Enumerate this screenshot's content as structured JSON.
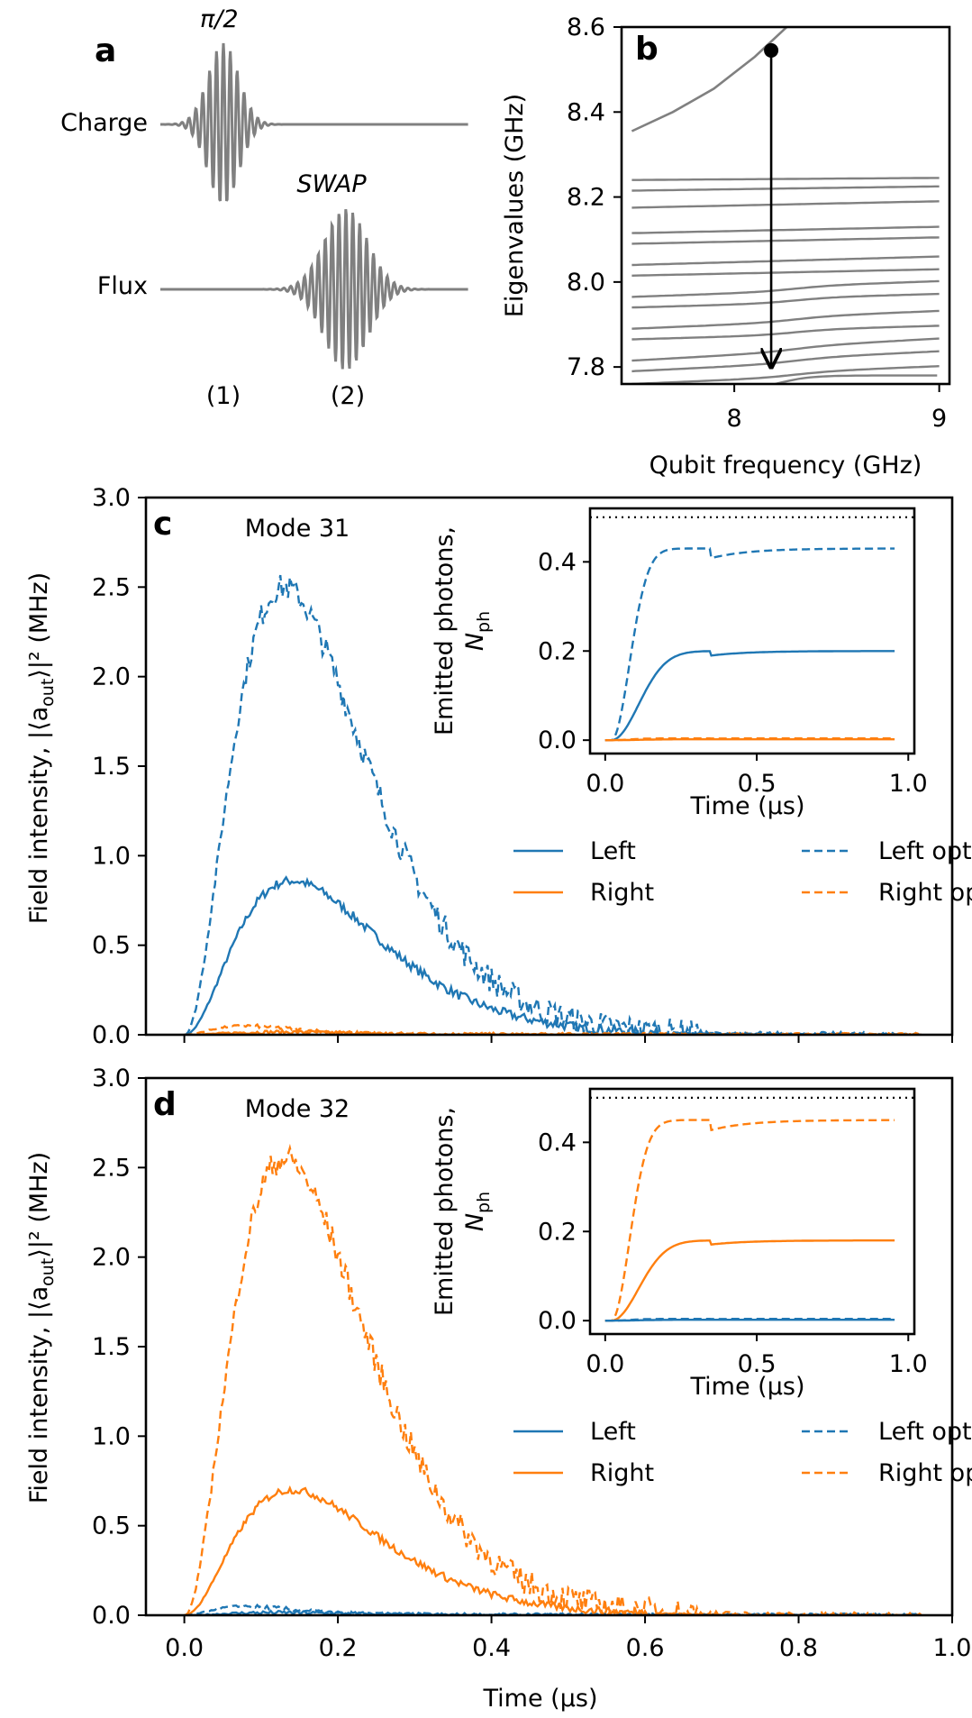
{
  "panel_a": {
    "letter": "a",
    "charge_label": "Charge",
    "flux_label": "Flux",
    "pulse1_label": "π/2",
    "pulse2_label": "SWAP",
    "step1_label": "(1)",
    "step2_label": "(2)",
    "line_color": "#808080"
  },
  "chart_data": [
    {
      "id": "b",
      "type": "line",
      "letter": "b",
      "xlabel": "Qubit frequency (GHz)",
      "ylabel": "Eigenvalues (GHz)",
      "xlim": [
        7.45,
        9.05
      ],
      "ylim": [
        7.76,
        8.6
      ],
      "xticks": [
        8,
        9
      ],
      "xtick_labels": [
        "8",
        "9"
      ],
      "yticks": [
        7.8,
        8.0,
        8.2,
        8.4,
        8.6
      ],
      "ytick_labels": [
        "7.8",
        "8.0",
        "8.2",
        "8.4",
        "8.6"
      ],
      "color": "#808080",
      "qubit_branch": {
        "x": [
          7.5,
          7.7,
          7.9,
          8.1,
          8.3
        ],
        "y": [
          8.355,
          8.4,
          8.455,
          8.53,
          8.62
        ]
      },
      "modes": [
        {
          "y_left": 8.24,
          "y_right": 8.245
        },
        {
          "y_left": 8.215,
          "y_right": 8.225
        },
        {
          "y_left": 8.175,
          "y_right": 8.19
        },
        {
          "y_left": 8.115,
          "y_right": 8.13
        },
        {
          "y_left": 8.09,
          "y_right": 8.105
        },
        {
          "y_left": 8.04,
          "y_right": 8.06
        },
        {
          "y_left": 8.015,
          "y_right": 8.03
        },
        {
          "y_left": 7.965,
          "y_right": 7.99
        },
        {
          "y_left": 7.94,
          "y_right": 7.96
        },
        {
          "y_left": 7.89,
          "y_right": 7.92
        },
        {
          "y_left": 7.865,
          "y_right": 7.885
        },
        {
          "y_left": 7.815,
          "y_right": 7.855
        },
        {
          "y_left": 7.79,
          "y_right": 7.825
        },
        {
          "y_left": 7.76,
          "y_right": 7.79
        }
      ],
      "arrow": {
        "x": 8.18,
        "y_start": 8.545,
        "y_end": 7.8
      },
      "marker": {
        "x": 8.18,
        "y": 8.545
      }
    },
    {
      "id": "c",
      "type": "line",
      "letter": "c",
      "title": "Mode 31",
      "xlabel": "",
      "ylabel_main": "Field intensity, |⟨a",
      "ylabel_sub": "out",
      "ylabel_tail": "⟩|² (MHz)",
      "xlim": [
        -0.05,
        1.0
      ],
      "ylim": [
        0.0,
        3.0
      ],
      "yticks": [
        0.0,
        0.5,
        1.0,
        1.5,
        2.0,
        2.5,
        3.0
      ],
      "ytick_labels": [
        "0.0",
        "0.5",
        "1.0",
        "1.5",
        "2.0",
        "2.5",
        "3.0"
      ],
      "xticks": [
        0.0,
        0.2,
        0.4,
        0.6,
        0.8,
        1.0
      ],
      "show_xtick_labels": false,
      "series": [
        {
          "name": "Left",
          "color": "#1f77b4",
          "style": "solid",
          "peak": 0.86,
          "t_peak": 0.14
        },
        {
          "name": "Right",
          "color": "#ff7f0e",
          "style": "solid",
          "peak": 0.015,
          "t_peak": 0.12
        },
        {
          "name": "Left opt",
          "color": "#1f77b4",
          "style": "dashed",
          "peak": 2.5,
          "t_peak": 0.13
        },
        {
          "name": "Right opt",
          "color": "#ff7f0e",
          "style": "dashed",
          "peak": 0.05,
          "t_peak": 0.08
        }
      ],
      "legend": {
        "placement": "lower-right",
        "labels": [
          "Left",
          "Right",
          "Left opt",
          "Right opt"
        ]
      },
      "inset": {
        "ylabel_main": "Emitted photons,",
        "ylabel_sym": "N",
        "ylabel_sub": "ph",
        "xlabel": "Time (μs)",
        "xlim": [
          -0.05,
          1.02
        ],
        "ylim": [
          -0.03,
          0.52
        ],
        "xticks": [
          0.0,
          0.5,
          1.0
        ],
        "xtick_labels": [
          "0.0",
          "0.5",
          "1.0"
        ],
        "yticks": [
          0.0,
          0.2,
          0.4
        ],
        "ytick_labels": [
          "0.0",
          "0.2",
          "0.4"
        ],
        "reference_level": 0.5,
        "series": [
          {
            "name": "Left",
            "final": 0.2,
            "color": "#1f77b4",
            "style": "solid"
          },
          {
            "name": "Left opt",
            "final": 0.43,
            "color": "#1f77b4",
            "style": "dashed"
          },
          {
            "name": "Right",
            "final": 0.002,
            "color": "#ff7f0e",
            "style": "solid"
          },
          {
            "name": "Right opt",
            "final": 0.004,
            "color": "#ff7f0e",
            "style": "dashed"
          }
        ]
      }
    },
    {
      "id": "d",
      "type": "line",
      "letter": "d",
      "title": "Mode 32",
      "xlabel": "Time (μs)",
      "ylabel_main": "Field intensity, |⟨a",
      "ylabel_sub": "out",
      "ylabel_tail": "⟩|² (MHz)",
      "xlim": [
        -0.05,
        1.0
      ],
      "ylim": [
        0.0,
        3.0
      ],
      "yticks": [
        0.0,
        0.5,
        1.0,
        1.5,
        2.0,
        2.5,
        3.0
      ],
      "ytick_labels": [
        "0.0",
        "0.5",
        "1.0",
        "1.5",
        "2.0",
        "2.5",
        "3.0"
      ],
      "xticks": [
        0.0,
        0.2,
        0.4,
        0.6,
        0.8,
        1.0
      ],
      "xtick_labels": [
        "0.0",
        "0.2",
        "0.4",
        "0.6",
        "0.8",
        "1.0"
      ],
      "show_xtick_labels": true,
      "series": [
        {
          "name": "Left",
          "color": "#1f77b4",
          "style": "solid",
          "peak": 0.015,
          "t_peak": 0.12
        },
        {
          "name": "Right",
          "color": "#ff7f0e",
          "style": "solid",
          "peak": 0.7,
          "t_peak": 0.14
        },
        {
          "name": "Left opt",
          "color": "#1f77b4",
          "style": "dashed",
          "peak": 0.05,
          "t_peak": 0.08
        },
        {
          "name": "Right opt",
          "color": "#ff7f0e",
          "style": "dashed",
          "peak": 2.55,
          "t_peak": 0.13
        }
      ],
      "legend": {
        "placement": "lower-right",
        "labels": [
          "Left",
          "Right",
          "Left opt",
          "Right opt"
        ]
      },
      "inset": {
        "ylabel_main": "Emitted photons,",
        "ylabel_sym": "N",
        "ylabel_sub": "ph",
        "xlabel": "Time (μs)",
        "xlim": [
          -0.05,
          1.02
        ],
        "ylim": [
          -0.03,
          0.52
        ],
        "xticks": [
          0.0,
          0.5,
          1.0
        ],
        "xtick_labels": [
          "0.0",
          "0.5",
          "1.0"
        ],
        "yticks": [
          0.0,
          0.2,
          0.4
        ],
        "ytick_labels": [
          "0.0",
          "0.2",
          "0.4"
        ],
        "reference_level": 0.5,
        "series": [
          {
            "name": "Right",
            "final": 0.18,
            "color": "#ff7f0e",
            "style": "solid"
          },
          {
            "name": "Right opt",
            "final": 0.45,
            "color": "#ff7f0e",
            "style": "dashed"
          },
          {
            "name": "Left",
            "final": 0.002,
            "color": "#1f77b4",
            "style": "solid"
          },
          {
            "name": "Left opt",
            "final": 0.004,
            "color": "#1f77b4",
            "style": "dashed"
          }
        ]
      }
    }
  ]
}
